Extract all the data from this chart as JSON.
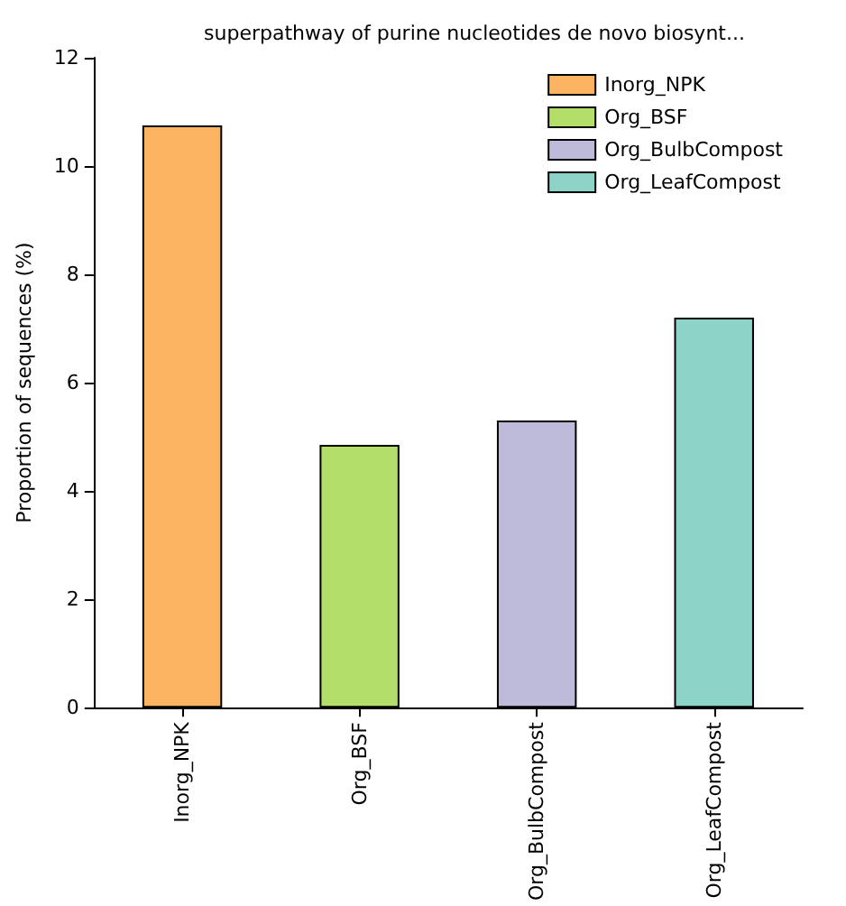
{
  "chart_data": {
    "type": "bar",
    "title": "superpathway of purine nucleotides de novo biosynt...",
    "ylabel": "Proportion of sequences (%)",
    "categories": [
      "Inorg_NPK",
      "Org_BSF",
      "Org_BulbCompost",
      "Org_LeafCompost"
    ],
    "series": [
      {
        "name": "Inorg_NPK",
        "color": "#fdb462",
        "values": [
          10.75,
          null,
          null,
          null
        ]
      },
      {
        "name": "Org_BSF",
        "color": "#b3de69",
        "values": [
          null,
          4.85,
          null,
          null
        ]
      },
      {
        "name": "Org_BulbCompost",
        "color": "#bebada",
        "values": [
          null,
          null,
          5.3,
          null
        ]
      },
      {
        "name": "Org_LeafCompost",
        "color": "#8dd3c7",
        "values": [
          null,
          null,
          null,
          7.2
        ]
      }
    ],
    "ylim": [
      0,
      12
    ],
    "yticks": [
      0,
      2,
      4,
      6,
      8,
      10,
      12
    ],
    "grid": false,
    "legend": "top right"
  }
}
